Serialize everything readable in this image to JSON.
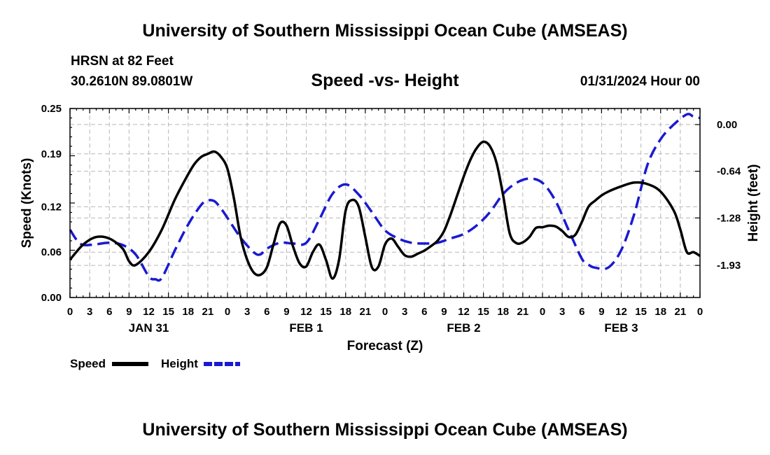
{
  "header": {
    "title": "University of Southern Mississippi Ocean Cube (AMSEAS)",
    "station": "HRSN at 82 Feet",
    "coords": "30.2610N  89.0801W",
    "date": "01/31/2024 Hour 00"
  },
  "footer": {
    "title": "University of Southern Mississippi Ocean Cube (AMSEAS)"
  },
  "chart_data": {
    "type": "line",
    "title": "Speed -vs- Height",
    "xlabel": "Forecast (Z)",
    "ylabel": "Speed (Knots)",
    "y2label": "Height (feet)",
    "x_unit": "hours since 01/31/2024 00Z",
    "xlim": [
      0,
      96
    ],
    "ylim": [
      0,
      0.25
    ],
    "y2lim": [
      -2.37,
      0.22
    ],
    "xticks": [
      0,
      3,
      6,
      9,
      12,
      15,
      18,
      21,
      24,
      27,
      30,
      33,
      36,
      39,
      42,
      45,
      48,
      51,
      54,
      57,
      60,
      63,
      66,
      69,
      72,
      75,
      78,
      81,
      84,
      87,
      90,
      93,
      96
    ],
    "xtick_labels": [
      "0",
      "3",
      "6",
      "9",
      "12",
      "15",
      "18",
      "21",
      "0",
      "3",
      "6",
      "9",
      "12",
      "15",
      "18",
      "21",
      "0",
      "3",
      "6",
      "9",
      "12",
      "15",
      "18",
      "21",
      "0",
      "3",
      "6",
      "9",
      "12",
      "15",
      "18",
      "21",
      "0"
    ],
    "day_labels": [
      {
        "x": 12,
        "label": "JAN 31"
      },
      {
        "x": 36,
        "label": "FEB 1"
      },
      {
        "x": 60,
        "label": "FEB 2"
      },
      {
        "x": 84,
        "label": "FEB 3"
      }
    ],
    "yticks": [
      0,
      0.06,
      0.12,
      0.19,
      0.25
    ],
    "ytick_labels": [
      "0.00",
      "0.06",
      "0.12",
      "0.19",
      "0.25"
    ],
    "y2ticks": [
      0.0,
      -0.64,
      -1.28,
      -1.93
    ],
    "y2tick_labels": [
      "0.00",
      "-0.64",
      "-1.28",
      "-1.93"
    ],
    "grid": true,
    "series": [
      {
        "name": "Speed",
        "axis": "left",
        "color": "#000000",
        "dash": "solid",
        "x": [
          0,
          2,
          4,
          6,
          8,
          9,
          10,
          12,
          14,
          16,
          18,
          19,
          20,
          21,
          22,
          23,
          24,
          25,
          26,
          27,
          28,
          29,
          30,
          31,
          32,
          33,
          34,
          35,
          36,
          37,
          38,
          39,
          40,
          41,
          42,
          43,
          44,
          45,
          46,
          47,
          48,
          49,
          50,
          51,
          52,
          53,
          54,
          55,
          56,
          57,
          58,
          59,
          60,
          61,
          62,
          63,
          64,
          65,
          66,
          67,
          68,
          69,
          70,
          71,
          72,
          73,
          74,
          75,
          76,
          77,
          78,
          79,
          80,
          81,
          82,
          84,
          86,
          88,
          90,
          92,
          93,
          94,
          95,
          96
        ],
        "values": [
          0.05,
          0.07,
          0.08,
          0.078,
          0.065,
          0.048,
          0.043,
          0.06,
          0.09,
          0.13,
          0.163,
          0.177,
          0.186,
          0.19,
          0.193,
          0.186,
          0.17,
          0.13,
          0.08,
          0.05,
          0.033,
          0.03,
          0.04,
          0.07,
          0.098,
          0.095,
          0.067,
          0.045,
          0.041,
          0.06,
          0.07,
          0.05,
          0.025,
          0.05,
          0.115,
          0.129,
          0.12,
          0.08,
          0.04,
          0.041,
          0.07,
          0.078,
          0.067,
          0.056,
          0.054,
          0.058,
          0.062,
          0.068,
          0.075,
          0.088,
          0.11,
          0.135,
          0.16,
          0.182,
          0.198,
          0.206,
          0.2,
          0.178,
          0.135,
          0.085,
          0.072,
          0.073,
          0.08,
          0.092,
          0.093,
          0.095,
          0.094,
          0.088,
          0.08,
          0.083,
          0.1,
          0.12,
          0.128,
          0.135,
          0.14,
          0.147,
          0.152,
          0.15,
          0.14,
          0.115,
          0.09,
          0.06,
          0.06,
          0.055
        ]
      },
      {
        "name": "Height",
        "axis": "right",
        "color": "#1a1ad0",
        "dash": "dashed",
        "x": [
          0,
          1,
          2,
          4,
          6,
          8,
          10,
          12,
          13,
          14,
          16,
          18,
          20,
          21,
          22,
          23,
          24,
          26,
          28,
          29,
          30,
          32,
          34,
          36,
          38,
          40,
          42,
          44,
          46,
          48,
          50,
          52,
          54,
          56,
          58,
          60,
          62,
          64,
          66,
          68,
          70,
          72,
          74,
          76,
          78,
          79,
          80,
          82,
          84,
          86,
          88,
          90,
          92,
          94,
          95,
          96
        ],
        "values": [
          -1.44,
          -1.58,
          -1.65,
          -1.64,
          -1.62,
          -1.65,
          -1.78,
          -2.08,
          -2.12,
          -2.1,
          -1.72,
          -1.37,
          -1.1,
          -1.04,
          -1.05,
          -1.15,
          -1.28,
          -1.55,
          -1.75,
          -1.78,
          -1.7,
          -1.62,
          -1.63,
          -1.62,
          -1.3,
          -0.95,
          -0.82,
          -0.96,
          -1.2,
          -1.45,
          -1.56,
          -1.62,
          -1.63,
          -1.62,
          -1.56,
          -1.5,
          -1.38,
          -1.2,
          -0.95,
          -0.8,
          -0.74,
          -0.8,
          -1.05,
          -1.45,
          -1.84,
          -1.92,
          -1.96,
          -1.96,
          -1.72,
          -1.22,
          -0.55,
          -0.2,
          -0.0,
          0.14,
          0.11,
          0.09
        ]
      }
    ],
    "legend": {
      "position": "bottom-left",
      "items": [
        {
          "label": "Speed",
          "color": "#000000",
          "dash": "solid"
        },
        {
          "label": "Height",
          "color": "#1a1ad0",
          "dash": "dashed"
        }
      ]
    }
  }
}
